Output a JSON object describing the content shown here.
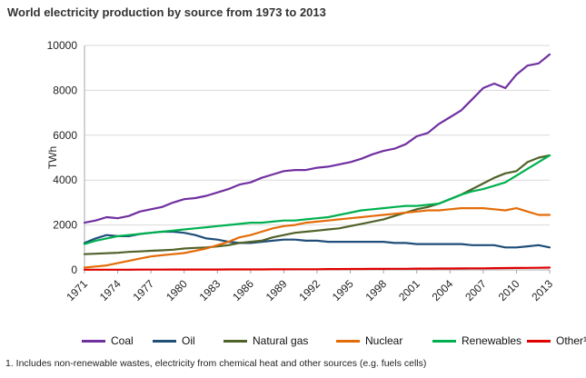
{
  "chart_data": {
    "type": "line",
    "title": "World electricity production by source from 1973 to 2013",
    "xlabel": "",
    "ylabel": "TWh",
    "xlim": [
      1971,
      2013
    ],
    "ylim": [
      0,
      10000
    ],
    "yticks": [
      0,
      2000,
      4000,
      6000,
      8000,
      10000
    ],
    "xticks": [
      1971,
      1974,
      1977,
      1980,
      1983,
      1986,
      1989,
      1992,
      1995,
      1998,
      2001,
      2004,
      2007,
      2010,
      2013
    ],
    "grid": "horizontal",
    "legend_position": "bottom",
    "x": [
      1971,
      1972,
      1973,
      1974,
      1975,
      1976,
      1977,
      1978,
      1979,
      1980,
      1981,
      1982,
      1983,
      1984,
      1985,
      1986,
      1987,
      1988,
      1989,
      1990,
      1991,
      1992,
      1993,
      1994,
      1995,
      1996,
      1997,
      1998,
      1999,
      2000,
      2001,
      2002,
      2003,
      2004,
      2005,
      2006,
      2007,
      2008,
      2009,
      2010,
      2011,
      2012,
      2013
    ],
    "series": [
      {
        "name": "Coal",
        "color": "#7030a0",
        "values": [
          2100,
          2200,
          2350,
          2300,
          2400,
          2600,
          2700,
          2800,
          3000,
          3150,
          3200,
          3300,
          3450,
          3600,
          3800,
          3900,
          4100,
          4250,
          4400,
          4450,
          4450,
          4550,
          4600,
          4700,
          4800,
          4950,
          5150,
          5300,
          5400,
          5600,
          5950,
          6100,
          6500,
          6800,
          7100,
          7600,
          8100,
          8300,
          8100,
          8700,
          9100,
          9200,
          9600
        ]
      },
      {
        "name": "Oil",
        "color": "#1f4e79",
        "values": [
          1200,
          1400,
          1550,
          1500,
          1500,
          1600,
          1650,
          1700,
          1700,
          1650,
          1550,
          1400,
          1350,
          1250,
          1200,
          1200,
          1250,
          1300,
          1350,
          1350,
          1300,
          1300,
          1250,
          1250,
          1250,
          1250,
          1250,
          1250,
          1200,
          1200,
          1150,
          1150,
          1150,
          1150,
          1150,
          1100,
          1100,
          1100,
          1000,
          1000,
          1050,
          1100,
          1000
        ]
      },
      {
        "name": "Natural gas",
        "color": "#4f6228",
        "values": [
          700,
          720,
          740,
          760,
          800,
          820,
          850,
          870,
          900,
          950,
          980,
          1000,
          1050,
          1100,
          1200,
          1250,
          1300,
          1450,
          1550,
          1650,
          1700,
          1750,
          1800,
          1850,
          1950,
          2050,
          2150,
          2250,
          2400,
          2550,
          2700,
          2800,
          2950,
          3150,
          3350,
          3600,
          3850,
          4100,
          4300,
          4400,
          4800,
          5000,
          5100
        ]
      },
      {
        "name": "Nuclear",
        "color": "#e36c09",
        "values": [
          100,
          150,
          200,
          300,
          400,
          500,
          600,
          650,
          700,
          750,
          850,
          950,
          1100,
          1250,
          1450,
          1550,
          1700,
          1850,
          1950,
          2000,
          2100,
          2150,
          2200,
          2250,
          2300,
          2350,
          2400,
          2450,
          2500,
          2550,
          2600,
          2650,
          2650,
          2700,
          2750,
          2750,
          2750,
          2700,
          2650,
          2750,
          2600,
          2450,
          2450
        ]
      },
      {
        "name": "Renewables",
        "color": "#00b050",
        "values": [
          1150,
          1300,
          1400,
          1500,
          1550,
          1600,
          1650,
          1700,
          1750,
          1800,
          1850,
          1900,
          1950,
          2000,
          2050,
          2100,
          2100,
          2150,
          2200,
          2200,
          2250,
          2300,
          2350,
          2450,
          2550,
          2650,
          2700,
          2750,
          2800,
          2850,
          2850,
          2900,
          2950,
          3150,
          3350,
          3500,
          3600,
          3750,
          3900,
          4200,
          4500,
          4800,
          5100
        ]
      },
      {
        "name": "Other¹",
        "color": "#e00000",
        "values": [
          10,
          10,
          10,
          10,
          10,
          12,
          12,
          12,
          15,
          15,
          15,
          18,
          18,
          20,
          20,
          22,
          22,
          25,
          25,
          28,
          30,
          30,
          35,
          35,
          40,
          40,
          45,
          45,
          50,
          50,
          55,
          55,
          60,
          60,
          65,
          70,
          70,
          75,
          80,
          85,
          90,
          95,
          100
        ]
      }
    ]
  },
  "footnote": "1. Includes non-renewable wastes, electricity from chemical heat and other sources (e.g. fuels cells)"
}
